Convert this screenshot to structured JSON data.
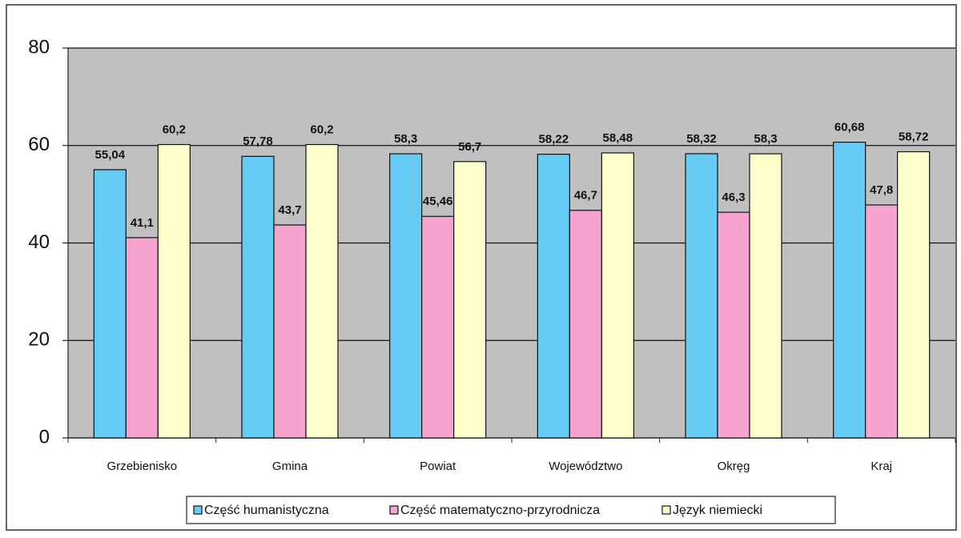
{
  "chart_data": {
    "type": "bar",
    "categories": [
      "Grzebienisko",
      "Gmina",
      "Powiat",
      "Województwo",
      "Okręg",
      "Kraj"
    ],
    "series": [
      {
        "name": "Część humanistyczna",
        "color": "#66ccf5",
        "values": [
          55.04,
          57.78,
          58.3,
          58.22,
          58.32,
          60.68
        ],
        "value_labels": [
          "55,04",
          "57,78",
          "58,3",
          "58,22",
          "58,32",
          "60,68"
        ]
      },
      {
        "name": "Część matematyczno-przyrodnicza",
        "color": "#f7a3cf",
        "values": [
          41.1,
          43.7,
          45.46,
          46.7,
          46.3,
          47.8
        ],
        "value_labels": [
          "41,1",
          "43,7",
          "45,46",
          "46,7",
          "46,3",
          "47,8"
        ]
      },
      {
        "name": "Język niemiecki",
        "color": "#ffffcc",
        "values": [
          60.2,
          60.2,
          56.7,
          58.48,
          58.3,
          58.72
        ],
        "value_labels": [
          "60,2",
          "60,2",
          "56,7",
          "58,48",
          "58,3",
          "58,72"
        ]
      }
    ],
    "ylim": [
      0,
      80
    ],
    "yticks": [
      0,
      20,
      40,
      60,
      80
    ],
    "grid": true,
    "legend": "bottom"
  }
}
